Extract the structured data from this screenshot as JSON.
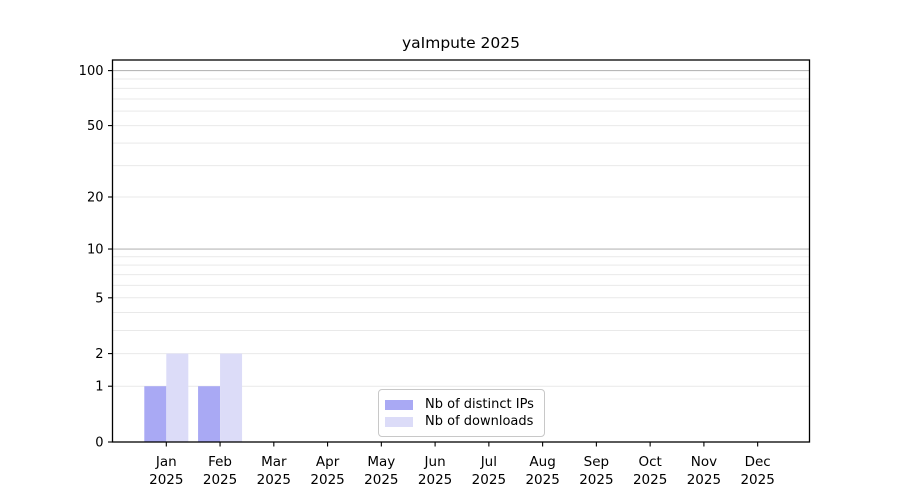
{
  "chart_data": {
    "type": "bar",
    "title": "yaImpute 2025",
    "x_months": [
      "Jan",
      "Feb",
      "Mar",
      "Apr",
      "May",
      "Jun",
      "Jul",
      "Aug",
      "Sep",
      "Oct",
      "Nov",
      "Dec"
    ],
    "x_year": "2025",
    "series": [
      {
        "name": "Nb of distinct IPs",
        "color": "#a9a9f4",
        "values": [
          1,
          1,
          0,
          0,
          0,
          0,
          0,
          0,
          0,
          0,
          0,
          0
        ]
      },
      {
        "name": "Nb of downloads",
        "color": "#dcdcf8",
        "values": [
          2,
          2,
          0,
          0,
          0,
          0,
          0,
          0,
          0,
          0,
          0,
          0
        ]
      }
    ],
    "y_axis": {
      "scale": "log10(1+x)",
      "ticks": [
        0,
        1,
        2,
        5,
        10,
        20,
        50,
        100
      ],
      "minor_gridline_values": [
        1,
        2,
        3,
        4,
        5,
        6,
        7,
        8,
        9,
        20,
        30,
        40,
        50,
        60,
        70,
        80,
        90
      ],
      "major_gridline_values": [
        10,
        100
      ],
      "ylim": [
        0,
        114
      ]
    },
    "xlabel": "",
    "ylabel": "",
    "grid": true,
    "legend_position": "lower center"
  },
  "legend": {
    "items": [
      {
        "label": "Nb of distinct IPs",
        "color": "#a9a9f4"
      },
      {
        "label": "Nb of downloads",
        "color": "#dcdcf8"
      }
    ]
  },
  "colors": {
    "axis": "#000000",
    "grid_minor": "#e9e9e9",
    "grid_major": "#b8b8b8",
    "legend_border": "#c8c8c8",
    "background": "#ffffff"
  }
}
